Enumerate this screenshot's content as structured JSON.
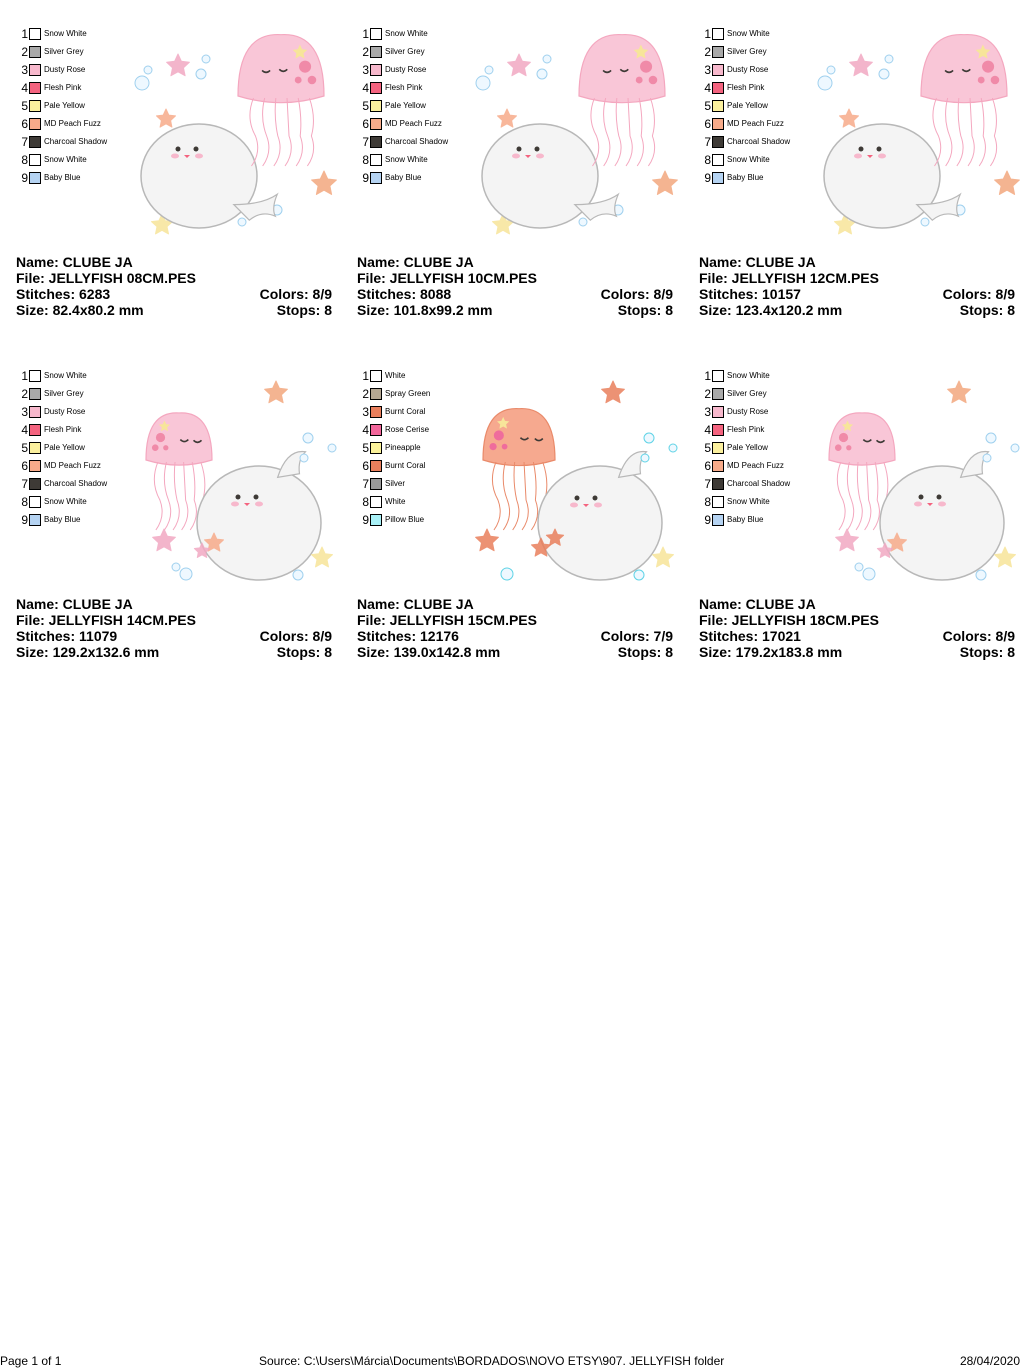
{
  "designs": [
    {
      "name_label": "Name: CLUBE JA",
      "file_label": "File: JELLYFISH 08CM.PES",
      "stitches_label": "Stitches: 6283",
      "colors_label": "Colors: 8/9",
      "size_label": "Size: 82.4x80.2 mm",
      "stops_label": "Stops: 8",
      "layout": "A",
      "palette": [
        {
          "num": "1",
          "name": "Snow White",
          "color": "#ffffff"
        },
        {
          "num": "2",
          "name": "Silver Grey",
          "color": "#a9a9a9"
        },
        {
          "num": "3",
          "name": "Dusty Rose",
          "color": "#f7b8cc"
        },
        {
          "num": "4",
          "name": "Flesh Pink",
          "color": "#f4637f"
        },
        {
          "num": "5",
          "name": "Pale Yellow",
          "color": "#fbf09e"
        },
        {
          "num": "6",
          "name": "MD Peach Fuzz",
          "color": "#f7ab8a"
        },
        {
          "num": "7",
          "name": "Charcoal Shadow",
          "color": "#3e3a36"
        },
        {
          "num": "8",
          "name": "Snow White",
          "color": "#ffffff"
        },
        {
          "num": "9",
          "name": "Baby Blue",
          "color": "#b5d3f2"
        }
      ]
    },
    {
      "name_label": "Name: CLUBE JA",
      "file_label": "File: JELLYFISH 10CM.PES",
      "stitches_label": "Stitches: 8088",
      "colors_label": "Colors: 8/9",
      "size_label": "Size: 101.8x99.2 mm",
      "stops_label": "Stops: 8",
      "layout": "A",
      "palette": [
        {
          "num": "1",
          "name": "Snow White",
          "color": "#ffffff"
        },
        {
          "num": "2",
          "name": "Silver Grey",
          "color": "#a9a9a9"
        },
        {
          "num": "3",
          "name": "Dusty Rose",
          "color": "#f7b8cc"
        },
        {
          "num": "4",
          "name": "Flesh Pink",
          "color": "#f4637f"
        },
        {
          "num": "5",
          "name": "Pale Yellow",
          "color": "#fbf09e"
        },
        {
          "num": "6",
          "name": "MD Peach Fuzz",
          "color": "#f7ab8a"
        },
        {
          "num": "7",
          "name": "Charcoal Shadow",
          "color": "#3e3a36"
        },
        {
          "num": "8",
          "name": "Snow White",
          "color": "#ffffff"
        },
        {
          "num": "9",
          "name": "Baby Blue",
          "color": "#b5d3f2"
        }
      ]
    },
    {
      "name_label": "Name: CLUBE JA",
      "file_label": "File: JELLYFISH 12CM.PES",
      "stitches_label": "Stitches: 10157",
      "colors_label": "Colors: 8/9",
      "size_label": "Size: 123.4x120.2 mm",
      "stops_label": "Stops: 8",
      "layout": "A",
      "palette": [
        {
          "num": "1",
          "name": "Snow White",
          "color": "#ffffff"
        },
        {
          "num": "2",
          "name": "Silver Grey",
          "color": "#a9a9a9"
        },
        {
          "num": "3",
          "name": "Dusty Rose",
          "color": "#f7b8cc"
        },
        {
          "num": "4",
          "name": "Flesh Pink",
          "color": "#f4637f"
        },
        {
          "num": "5",
          "name": "Pale Yellow",
          "color": "#fbf09e"
        },
        {
          "num": "6",
          "name": "MD Peach Fuzz",
          "color": "#f7ab8a"
        },
        {
          "num": "7",
          "name": "Charcoal Shadow",
          "color": "#3e3a36"
        },
        {
          "num": "8",
          "name": "Snow White",
          "color": "#ffffff"
        },
        {
          "num": "9",
          "name": "Baby Blue",
          "color": "#b5d3f2"
        }
      ]
    },
    {
      "name_label": "Name: CLUBE JA",
      "file_label": "File: JELLYFISH 14CM.PES",
      "stitches_label": "Stitches: 11079",
      "colors_label": "Colors: 8/9",
      "size_label": "Size: 129.2x132.6 mm",
      "stops_label": "Stops: 8",
      "layout": "B",
      "palette": [
        {
          "num": "1",
          "name": "Snow White",
          "color": "#ffffff"
        },
        {
          "num": "2",
          "name": "Silver Grey",
          "color": "#a9a9a9"
        },
        {
          "num": "3",
          "name": "Dusty Rose",
          "color": "#f7b8cc"
        },
        {
          "num": "4",
          "name": "Flesh Pink",
          "color": "#f4637f"
        },
        {
          "num": "5",
          "name": "Pale Yellow",
          "color": "#fbf09e"
        },
        {
          "num": "6",
          "name": "MD Peach Fuzz",
          "color": "#f7ab8a"
        },
        {
          "num": "7",
          "name": "Charcoal Shadow",
          "color": "#3e3a36"
        },
        {
          "num": "8",
          "name": "Snow White",
          "color": "#ffffff"
        },
        {
          "num": "9",
          "name": "Baby Blue",
          "color": "#b5d3f2"
        }
      ]
    },
    {
      "name_label": "Name: CLUBE JA",
      "file_label": "File: JELLYFISH 15CM.PES",
      "stitches_label": "Stitches: 12176",
      "colors_label": "Colors: 7/9",
      "size_label": "Size: 139.0x142.8 mm",
      "stops_label": "Stops: 8",
      "layout": "C",
      "palette": [
        {
          "num": "1",
          "name": "White",
          "color": "#ffffff"
        },
        {
          "num": "2",
          "name": "Spray Green",
          "color": "#b3a692"
        },
        {
          "num": "3",
          "name": "Burnt Coral",
          "color": "#e97f5c"
        },
        {
          "num": "4",
          "name": "Rose Cerise",
          "color": "#f2669b"
        },
        {
          "num": "5",
          "name": "Pineapple",
          "color": "#fbf29a"
        },
        {
          "num": "6",
          "name": "Burnt Coral",
          "color": "#e97f5c"
        },
        {
          "num": "7",
          "name": "Silver",
          "color": "#9a9a9a"
        },
        {
          "num": "8",
          "name": "White",
          "color": "#ffffff"
        },
        {
          "num": "9",
          "name": "Pillow Blue",
          "color": "#a9f1f7"
        }
      ]
    },
    {
      "name_label": "Name: CLUBE JA",
      "file_label": "File: JELLYFISH 18CM.PES",
      "stitches_label": "Stitches: 17021",
      "colors_label": "Colors: 8/9",
      "size_label": "Size: 179.2x183.8 mm",
      "stops_label": "Stops: 8",
      "layout": "B",
      "palette": [
        {
          "num": "1",
          "name": "Snow White",
          "color": "#ffffff"
        },
        {
          "num": "2",
          "name": "Silver Grey",
          "color": "#a9a9a9"
        },
        {
          "num": "3",
          "name": "Dusty Rose",
          "color": "#f7b8cc"
        },
        {
          "num": "4",
          "name": "Flesh Pink",
          "color": "#f4637f"
        },
        {
          "num": "5",
          "name": "Pale Yellow",
          "color": "#fbf09e"
        },
        {
          "num": "6",
          "name": "MD Peach Fuzz",
          "color": "#f7ab8a"
        },
        {
          "num": "7",
          "name": "Charcoal Shadow",
          "color": "#3e3a36"
        },
        {
          "num": "8",
          "name": "Snow White",
          "color": "#ffffff"
        },
        {
          "num": "9",
          "name": "Baby Blue",
          "color": "#b5d3f2"
        }
      ]
    }
  ],
  "footer": {
    "page": "Page 1 of 1",
    "source": "Source: C:\\Users\\Márcia\\Documents\\BORDADOS\\NOVO ETSY\\907. JELLYFISH folder",
    "date": "28/04/2020"
  }
}
